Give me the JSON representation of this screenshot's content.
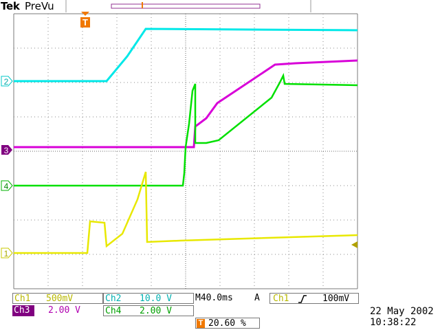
{
  "header": {
    "brand": "Tek",
    "mode": "PreVu"
  },
  "colors": {
    "ch1": "#e8e800",
    "ch2": "#00e8e8",
    "ch3": "#d800d8",
    "ch4": "#00e000",
    "trigger": "#f07800",
    "grid": "#7a7a7a"
  },
  "markers": {
    "ch1": "1",
    "ch2": "2",
    "ch3": "3",
    "ch4": "4",
    "trigger": "T"
  },
  "readout": {
    "ch1_label": "Ch1",
    "ch1_scale": "500mV",
    "ch2_label": "Ch2",
    "ch2_scale": "10.0 V",
    "ch3_label": "Ch3",
    "ch3_scale": "2.00 V",
    "ch4_label": "Ch4",
    "ch4_scale": "2.00 V",
    "timebase": "M40.0ms",
    "trigger_mode": "A",
    "trigger_source": "Ch1",
    "trigger_level": "100mV",
    "trigger_position": "20.60 %"
  },
  "datetime": {
    "date": "22 May 2002",
    "time": "10:38:22"
  },
  "icons": {
    "trigger_marker": "trigger-t-icon",
    "rising_edge": "rising-edge-icon",
    "level_arrow": "trigger-level-arrow-icon"
  }
}
